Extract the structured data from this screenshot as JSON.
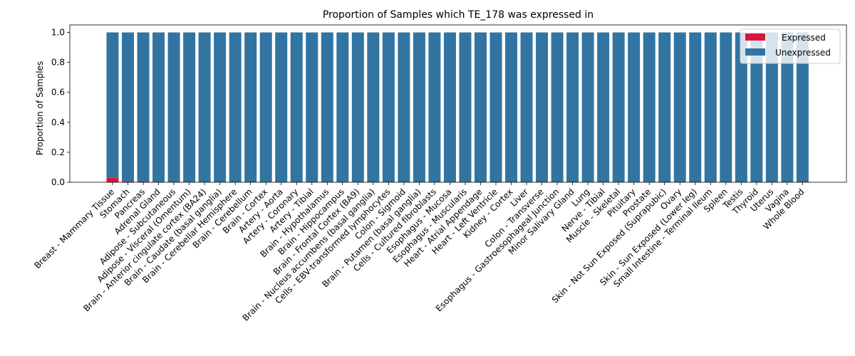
{
  "chart_data": {
    "type": "bar",
    "stacked": true,
    "title": "Proportion of Samples which TE_178 was expressed in",
    "xlabel": "",
    "ylabel": "Proportion of Samples",
    "ylim": [
      0,
      1.05
    ],
    "yticks": [
      "0.0",
      "0.2",
      "0.4",
      "0.6",
      "0.8",
      "1.0"
    ],
    "grid": false,
    "legend_position": "top-right",
    "categories": [
      "Breast - Mammary Tissue",
      "Stomach",
      "Pancreas",
      "Adrenal Gland",
      "Adipose - Subcutaneous",
      "Adipose - Visceral (Omentum)",
      "Brain - Anterior cingulate cortex (BA24)",
      "Brain - Caudate (basal ganglia)",
      "Brain - Cerebellar Hemisphere",
      "Brain - Cerebellum",
      "Brain - Cortex",
      "Artery - Aorta",
      "Artery - Coronary",
      "Artery - Tibial",
      "Brain - Hypothalamus",
      "Brain - Hippocampus",
      "Brain - Frontal Cortex (BA9)",
      "Brain - Nucleus accumbens (basal ganglia)",
      "Cells - EBV-transformed lymphocytes",
      "Colon - Sigmoid",
      "Brain - Putamen (basal ganglia)",
      "Cells - Cultured fibroblasts",
      "Esophagus - Mucosa",
      "Esophagus - Muscularis",
      "Heart - Atrial Appendage",
      "Heart - Left Ventricle",
      "Kidney - Cortex",
      "Liver",
      "Colon - Transverse",
      "Esophagus - Gastroesophageal Junction",
      "Minor Salivary Gland",
      "Lung",
      "Nerve - Tibial",
      "Muscle - Skeletal",
      "Pituitary",
      "Prostate",
      "Skin - Not Sun Exposed (Suprapubic)",
      "Ovary",
      "Skin - Sun Exposed (Lower leg)",
      "Small Intestine - Terminal Ileum",
      "Spleen",
      "Testis",
      "Thyroid",
      "Uterus",
      "Vagina",
      "Whole Blood"
    ],
    "series": [
      {
        "name": "Expressed",
        "color": "#dc143c",
        "values": [
          0.03,
          0.005,
          0.005,
          0,
          0,
          0,
          0,
          0,
          0,
          0,
          0,
          0,
          0,
          0,
          0,
          0,
          0,
          0,
          0,
          0,
          0,
          0,
          0,
          0,
          0,
          0,
          0,
          0,
          0,
          0,
          0,
          0,
          0,
          0,
          0,
          0,
          0,
          0,
          0,
          0,
          0,
          0,
          0,
          0,
          0,
          0
        ]
      },
      {
        "name": "Unexpressed",
        "color": "#3274a1",
        "values": [
          0.97,
          0.995,
          0.995,
          1,
          1,
          1,
          1,
          1,
          1,
          1,
          1,
          1,
          1,
          1,
          1,
          1,
          1,
          1,
          1,
          1,
          1,
          1,
          1,
          1,
          1,
          1,
          1,
          1,
          1,
          1,
          1,
          1,
          1,
          1,
          1,
          1,
          1,
          1,
          1,
          1,
          1,
          1,
          1,
          1,
          1,
          1
        ]
      }
    ]
  }
}
